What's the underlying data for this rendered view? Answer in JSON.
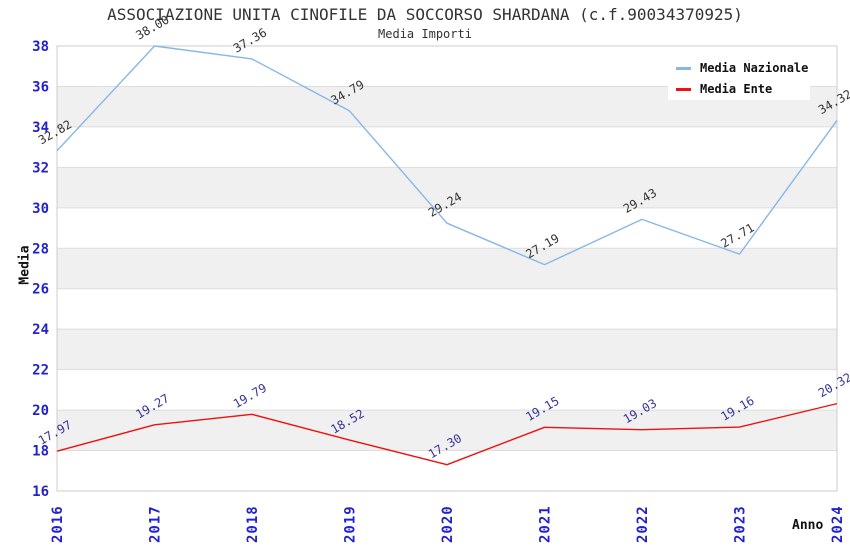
{
  "title": "ASSOCIAZIONE UNITA CINOFILE DA SOCCORSO SHARDANA (c.f.90034370925)",
  "subtitle": "Media Importi",
  "axes": {
    "y_title": "Media",
    "x_title": "Anno"
  },
  "legend": {
    "items": [
      {
        "label": "Media Nazionale",
        "color": "#86B7E9"
      },
      {
        "label": "Media Ente",
        "color": "#EE1111"
      }
    ]
  },
  "chart_data": {
    "type": "line",
    "x": [
      2016,
      2017,
      2018,
      2019,
      2020,
      2021,
      2022,
      2023,
      2024
    ],
    "series": [
      {
        "name": "Media Nazionale",
        "color": "#86B7E9",
        "label_color": "#333333",
        "values": [
          32.82,
          38.0,
          37.36,
          34.79,
          29.24,
          27.19,
          29.43,
          27.71,
          34.32
        ]
      },
      {
        "name": "Media Ente",
        "color": "#EE1111",
        "label_color": "#333399",
        "values": [
          17.97,
          19.27,
          19.79,
          18.52,
          17.3,
          19.15,
          19.03,
          19.16,
          20.32
        ]
      }
    ],
    "title": "Media Importi",
    "xlabel": "Anno",
    "ylabel": "Media",
    "ylim": [
      16,
      38
    ],
    "ytick_step": 2,
    "grid": "horizontal-bands",
    "band_color": "#F0F0F0",
    "gridline_color": "#DDDDDD",
    "border_color": "#CCCCCC",
    "tick_label_color": "#2222CC",
    "legend_position": "top-right"
  }
}
